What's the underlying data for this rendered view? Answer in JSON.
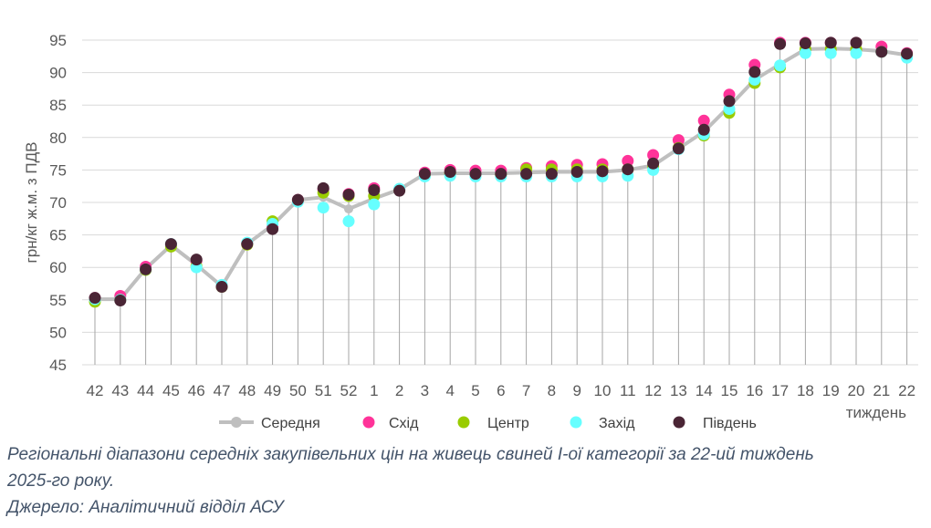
{
  "chart_data": {
    "type": "line",
    "title": "",
    "xlabel": "тиждень",
    "ylabel": "грн/кг ж.м. з ПДВ",
    "ylim": [
      45,
      97
    ],
    "yticks": [
      45,
      50,
      55,
      60,
      65,
      70,
      75,
      80,
      85,
      90,
      95
    ],
    "grid": "horizontal",
    "legend_position": "bottom",
    "categories": [
      "42",
      "43",
      "44",
      "45",
      "46",
      "47",
      "48",
      "49",
      "50",
      "51",
      "52",
      "1",
      "2",
      "3",
      "4",
      "5",
      "6",
      "7",
      "8",
      "9",
      "10",
      "11",
      "12",
      "13",
      "14",
      "15",
      "16",
      "17",
      "18",
      "19",
      "20",
      "21",
      "22"
    ],
    "series": [
      {
        "name": "Середня",
        "color": "#bfbfbf",
        "marker": "line",
        "values": [
          55.1,
          55.1,
          59.8,
          63.4,
          60.4,
          57.1,
          63.6,
          66.5,
          70.4,
          70.8,
          69.0,
          70.6,
          72.0,
          74.4,
          74.5,
          74.5,
          74.5,
          74.6,
          74.7,
          74.7,
          74.7,
          75.0,
          75.7,
          78.3,
          80.9,
          84.8,
          88.9,
          91.3,
          93.6,
          93.7,
          93.6,
          93.3,
          92.7
        ]
      },
      {
        "name": "Схід",
        "color": "#ff3399",
        "marker": "dot",
        "values": [
          55.3,
          55.6,
          60.1,
          63.5,
          61.0,
          57.2,
          63.7,
          66.3,
          70.4,
          72.0,
          71.3,
          72.2,
          72.0,
          74.6,
          75.0,
          74.9,
          74.9,
          75.3,
          75.6,
          75.8,
          75.9,
          76.4,
          77.3,
          79.6,
          82.6,
          86.6,
          91.2,
          94.6,
          94.6,
          94.6,
          94.6,
          94.0,
          93.0
        ]
      },
      {
        "name": "Центр",
        "color": "#99cc00",
        "marker": "dot",
        "values": [
          54.7,
          55.0,
          59.6,
          63.2,
          60.2,
          57.0,
          63.5,
          67.1,
          70.3,
          71.5,
          71.0,
          71.0,
          71.9,
          74.1,
          74.5,
          74.2,
          74.2,
          75.1,
          75.1,
          75.1,
          75.1,
          75.1,
          75.5,
          78.4,
          80.3,
          83.8,
          88.4,
          90.8,
          93.6,
          93.6,
          93.6,
          93.2,
          92.8
        ]
      },
      {
        "name": "Захід",
        "color": "#66ffff",
        "marker": "dot",
        "values": [
          55.1,
          55.0,
          59.7,
          63.6,
          60.0,
          57.3,
          63.8,
          66.7,
          70.1,
          69.2,
          67.1,
          69.7,
          72.1,
          74.0,
          74.1,
          74.0,
          74.0,
          74.0,
          74.0,
          74.0,
          74.0,
          74.1,
          75.0,
          78.2,
          80.5,
          84.4,
          88.9,
          91.1,
          93.0,
          93.0,
          93.0,
          93.2,
          92.3
        ]
      },
      {
        "name": "Південь",
        "color": "#4a2535",
        "marker": "dot",
        "values": [
          55.3,
          54.9,
          59.7,
          63.6,
          61.2,
          57.0,
          63.6,
          65.9,
          70.4,
          72.2,
          71.2,
          71.9,
          71.8,
          74.4,
          74.7,
          74.4,
          74.4,
          74.4,
          74.4,
          74.7,
          74.8,
          75.1,
          76.0,
          78.3,
          81.2,
          85.6,
          90.1,
          94.4,
          94.5,
          94.6,
          94.6,
          93.2,
          92.9
        ]
      }
    ]
  },
  "caption": {
    "line1": "Регіональні діапазони середніх закупівельних цін на живець свиней І-ої категорії за 22-ий тиждень",
    "line2": "2025-го року.",
    "line3": "Джерело: Аналітичний відділ АСУ"
  }
}
